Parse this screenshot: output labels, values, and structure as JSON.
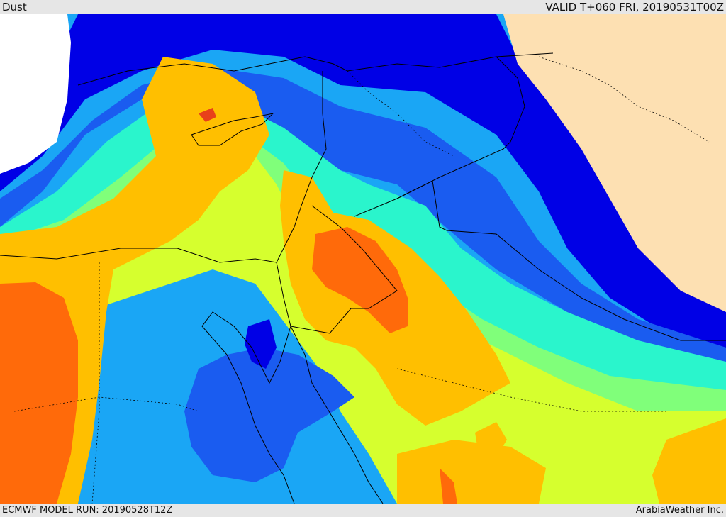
{
  "header": {
    "product": "Dust",
    "valid_time": "VALID T+060 FRI, 20190531T00Z"
  },
  "footer": {
    "model_run": "ECMWF MODEL RUN: 20190528T12Z",
    "credit": "ArabiaWeather Inc."
  },
  "map": {
    "colors": {
      "land_outside_data": "#fde0b2",
      "sea_outside_data": "#ffffff",
      "very_low": "#0000e6",
      "low": "#1a5cf0",
      "low_mid": "#1aa6f5",
      "mid": "#2af5cc",
      "mid_green": "#80ff7a",
      "mid_high": "#d6ff2e",
      "high": "#ffbf00",
      "very_high": "#ff6a0a",
      "extreme": "#e8401a",
      "border": "#000000"
    }
  }
}
